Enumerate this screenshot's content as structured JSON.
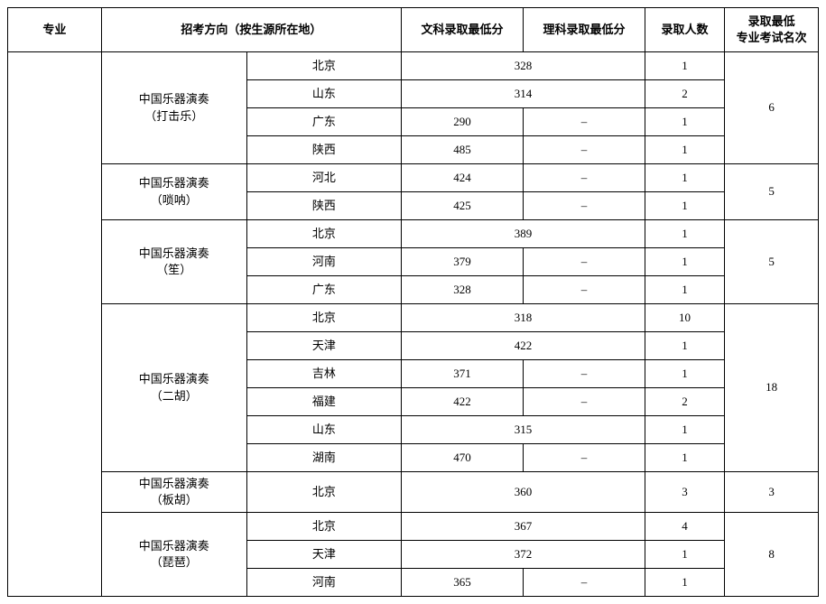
{
  "headers": {
    "major": "专业",
    "direction": "招考方向（按生源所在地）",
    "arts_min": "文科录取最低分",
    "sci_min": "理科录取最低分",
    "admit_count": "录取人数",
    "rank_min": "录取最低\n专业考试名次"
  },
  "groups": [
    {
      "direction": "中国乐器演奏\n（打击乐）",
      "rank": "6",
      "rows": [
        {
          "province": "北京",
          "arts": "328",
          "sci": null,
          "merged": true,
          "count": "1"
        },
        {
          "province": "山东",
          "arts": "314",
          "sci": null,
          "merged": true,
          "count": "2"
        },
        {
          "province": "广东",
          "arts": "290",
          "sci": "–",
          "merged": false,
          "count": "1"
        },
        {
          "province": "陕西",
          "arts": "485",
          "sci": "–",
          "merged": false,
          "count": "1"
        }
      ]
    },
    {
      "direction": "中国乐器演奏\n（唢呐）",
      "rank": "5",
      "rows": [
        {
          "province": "河北",
          "arts": "424",
          "sci": "–",
          "merged": false,
          "count": "1"
        },
        {
          "province": "陕西",
          "arts": "425",
          "sci": "–",
          "merged": false,
          "count": "1"
        }
      ]
    },
    {
      "direction": "中国乐器演奏\n（笙）",
      "rank": "5",
      "rows": [
        {
          "province": "北京",
          "arts": "389",
          "sci": null,
          "merged": true,
          "count": "1"
        },
        {
          "province": "河南",
          "arts": "379",
          "sci": "–",
          "merged": false,
          "count": "1"
        },
        {
          "province": "广东",
          "arts": "328",
          "sci": "–",
          "merged": false,
          "count": "1"
        }
      ]
    },
    {
      "direction": "中国乐器演奏\n（二胡）",
      "rank": "18",
      "rows": [
        {
          "province": "北京",
          "arts": "318",
          "sci": null,
          "merged": true,
          "count": "10"
        },
        {
          "province": "天津",
          "arts": "422",
          "sci": null,
          "merged": true,
          "count": "1"
        },
        {
          "province": "吉林",
          "arts": "371",
          "sci": "–",
          "merged": false,
          "count": "1"
        },
        {
          "province": "福建",
          "arts": "422",
          "sci": "–",
          "merged": false,
          "count": "2"
        },
        {
          "province": "山东",
          "arts": "315",
          "sci": null,
          "merged": true,
          "count": "1"
        },
        {
          "province": "湖南",
          "arts": "470",
          "sci": "–",
          "merged": false,
          "count": "1"
        }
      ]
    },
    {
      "direction": "中国乐器演奏\n（板胡）",
      "rank": "3",
      "rows": [
        {
          "province": "北京",
          "arts": "360",
          "sci": null,
          "merged": true,
          "count": "3"
        }
      ]
    },
    {
      "direction": "中国乐器演奏\n（琵琶）",
      "rank": "8",
      "rows": [
        {
          "province": "北京",
          "arts": "367",
          "sci": null,
          "merged": true,
          "count": "4"
        },
        {
          "province": "天津",
          "arts": "372",
          "sci": null,
          "merged": true,
          "count": "1"
        },
        {
          "province": "河南",
          "arts": "365",
          "sci": "–",
          "merged": false,
          "count": "1"
        }
      ]
    }
  ]
}
